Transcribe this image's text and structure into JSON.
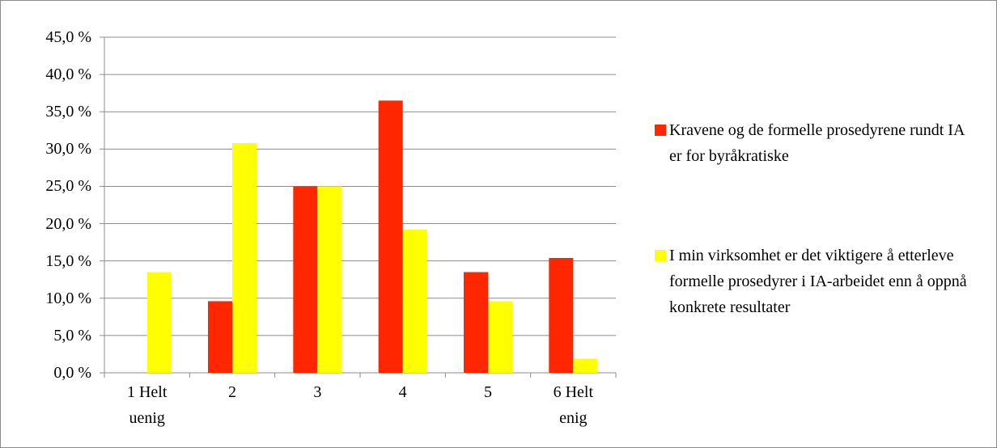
{
  "chart_data": {
    "type": "bar",
    "categories": [
      "1 Helt uenig",
      "2",
      "3",
      "4",
      "5",
      "6 Helt enig"
    ],
    "series": [
      {
        "name": "Kravene og de formelle prosedyrene rundt IA er for byråkratiske",
        "color": "#ff2600",
        "values": [
          0,
          9.6,
          25.0,
          36.5,
          13.5,
          15.4
        ]
      },
      {
        "name": "I min virksomhet er det viktigere å etterleve formelle prosedyrer i IA-arbeidet enn å oppnå konkrete resultater",
        "color": "#ffff00",
        "values": [
          13.5,
          30.8,
          25.0,
          19.2,
          9.6,
          1.9
        ]
      }
    ],
    "ylim": [
      0,
      45
    ],
    "yticks": [
      {
        "value": 0,
        "label": "0,0 %"
      },
      {
        "value": 5,
        "label": "5,0 %"
      },
      {
        "value": 10,
        "label": "10,0 %"
      },
      {
        "value": 15,
        "label": "15,0 %"
      },
      {
        "value": 20,
        "label": "20,0 %"
      },
      {
        "value": 25,
        "label": "25,0 %"
      },
      {
        "value": 30,
        "label": "30,0 %"
      },
      {
        "value": 35,
        "label": "35,0 %"
      },
      {
        "value": 40,
        "label": "40,0 %"
      },
      {
        "value": 45,
        "label": "45,0 %"
      }
    ],
    "grid": true,
    "legend": "right"
  }
}
